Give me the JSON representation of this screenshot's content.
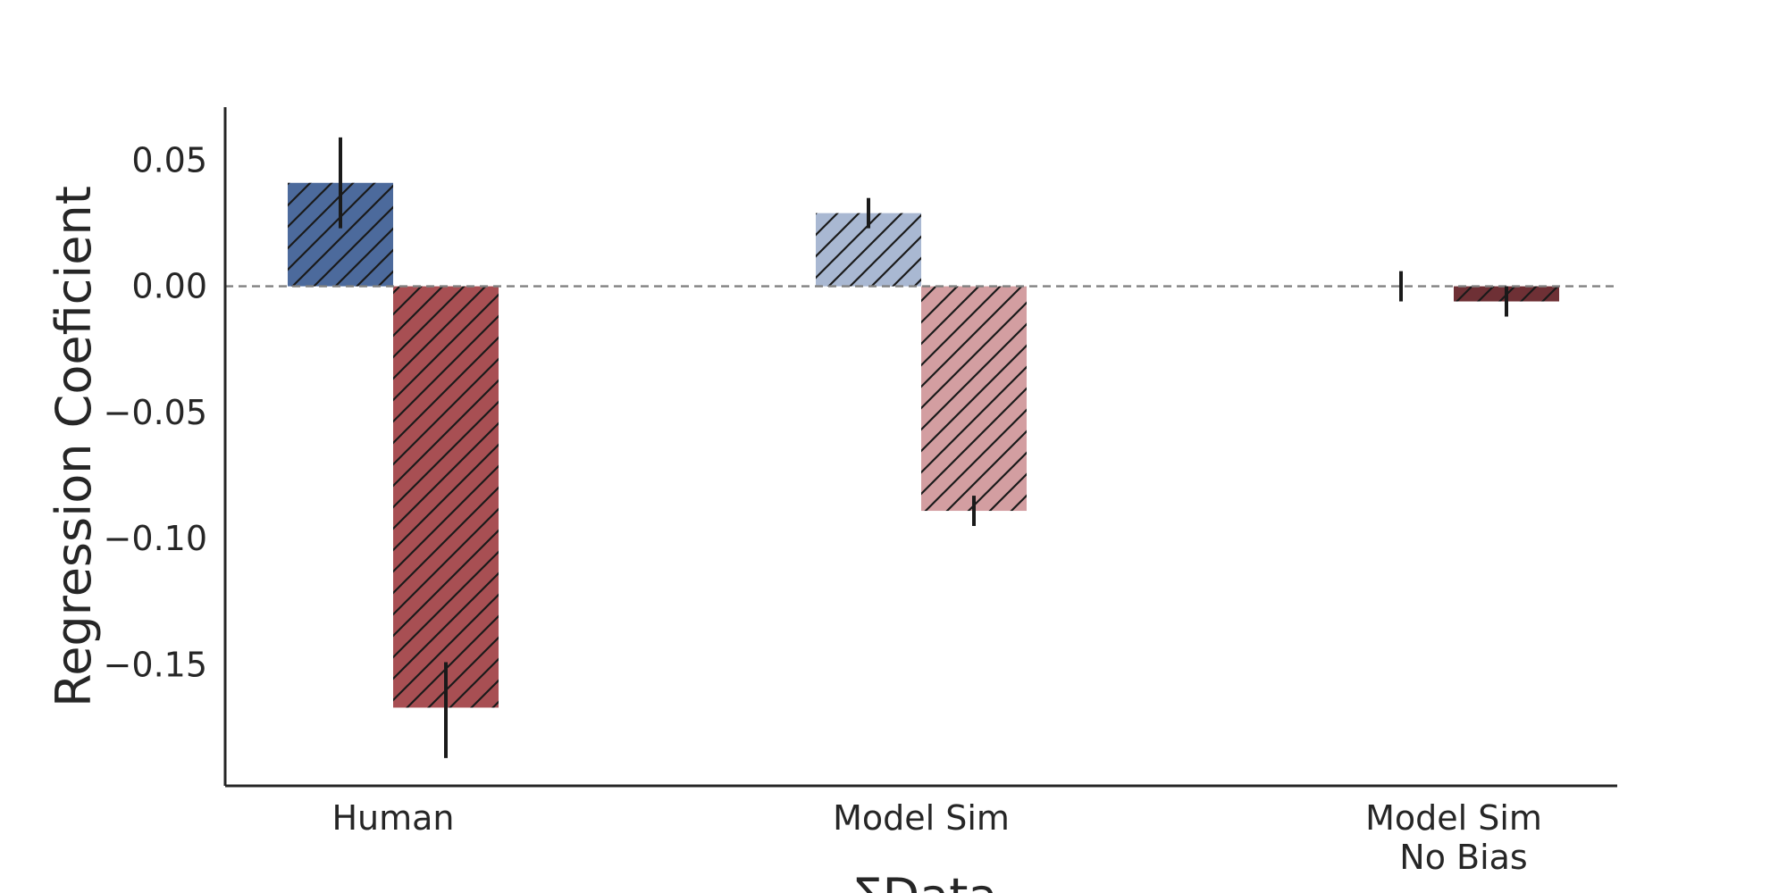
{
  "chart_data": {
    "type": "bar",
    "title": "",
    "xlabel": "ΣData",
    "ylabel": "Regression Coeficient",
    "ylim": [
      -0.198,
      0.071
    ],
    "yticks": [
      "0.05",
      "0.00",
      "−0.05",
      "−0.10",
      "−0.15"
    ],
    "ytick_values": [
      0.05,
      0.0,
      -0.05,
      -0.1,
      -0.15
    ],
    "categories": [
      [
        "Human"
      ],
      [
        "Model Sim"
      ],
      [
        "Model Sim",
        "No Bias"
      ]
    ],
    "grid": false,
    "legend": "none",
    "reference_line": 0.0,
    "hatch": "diagonal",
    "bars": [
      {
        "group": 0,
        "slot": 0,
        "value": 0.041,
        "err_low": 0.023,
        "err_high": 0.059,
        "color": "#4c6a9c"
      },
      {
        "group": 0,
        "slot": 1,
        "value": -0.167,
        "err_low": -0.187,
        "err_high": -0.149,
        "color": "#a84f53"
      },
      {
        "group": 1,
        "slot": 0,
        "value": 0.029,
        "err_low": 0.023,
        "err_high": 0.035,
        "color": "#a9b8d2"
      },
      {
        "group": 1,
        "slot": 1,
        "value": -0.089,
        "err_low": -0.095,
        "err_high": -0.083,
        "color": "#d39ea1"
      },
      {
        "group": 2,
        "slot": 0,
        "value": 0.0,
        "err_low": -0.006,
        "err_high": 0.006,
        "color": "#4c6a9c"
      },
      {
        "group": 2,
        "slot": 1,
        "value": -0.006,
        "err_low": -0.012,
        "err_high": 0.0,
        "color": "#6e3035"
      }
    ],
    "errorbar_color": "#1a1a1a",
    "axis_color": "#262626",
    "refline_color": "#808080"
  }
}
